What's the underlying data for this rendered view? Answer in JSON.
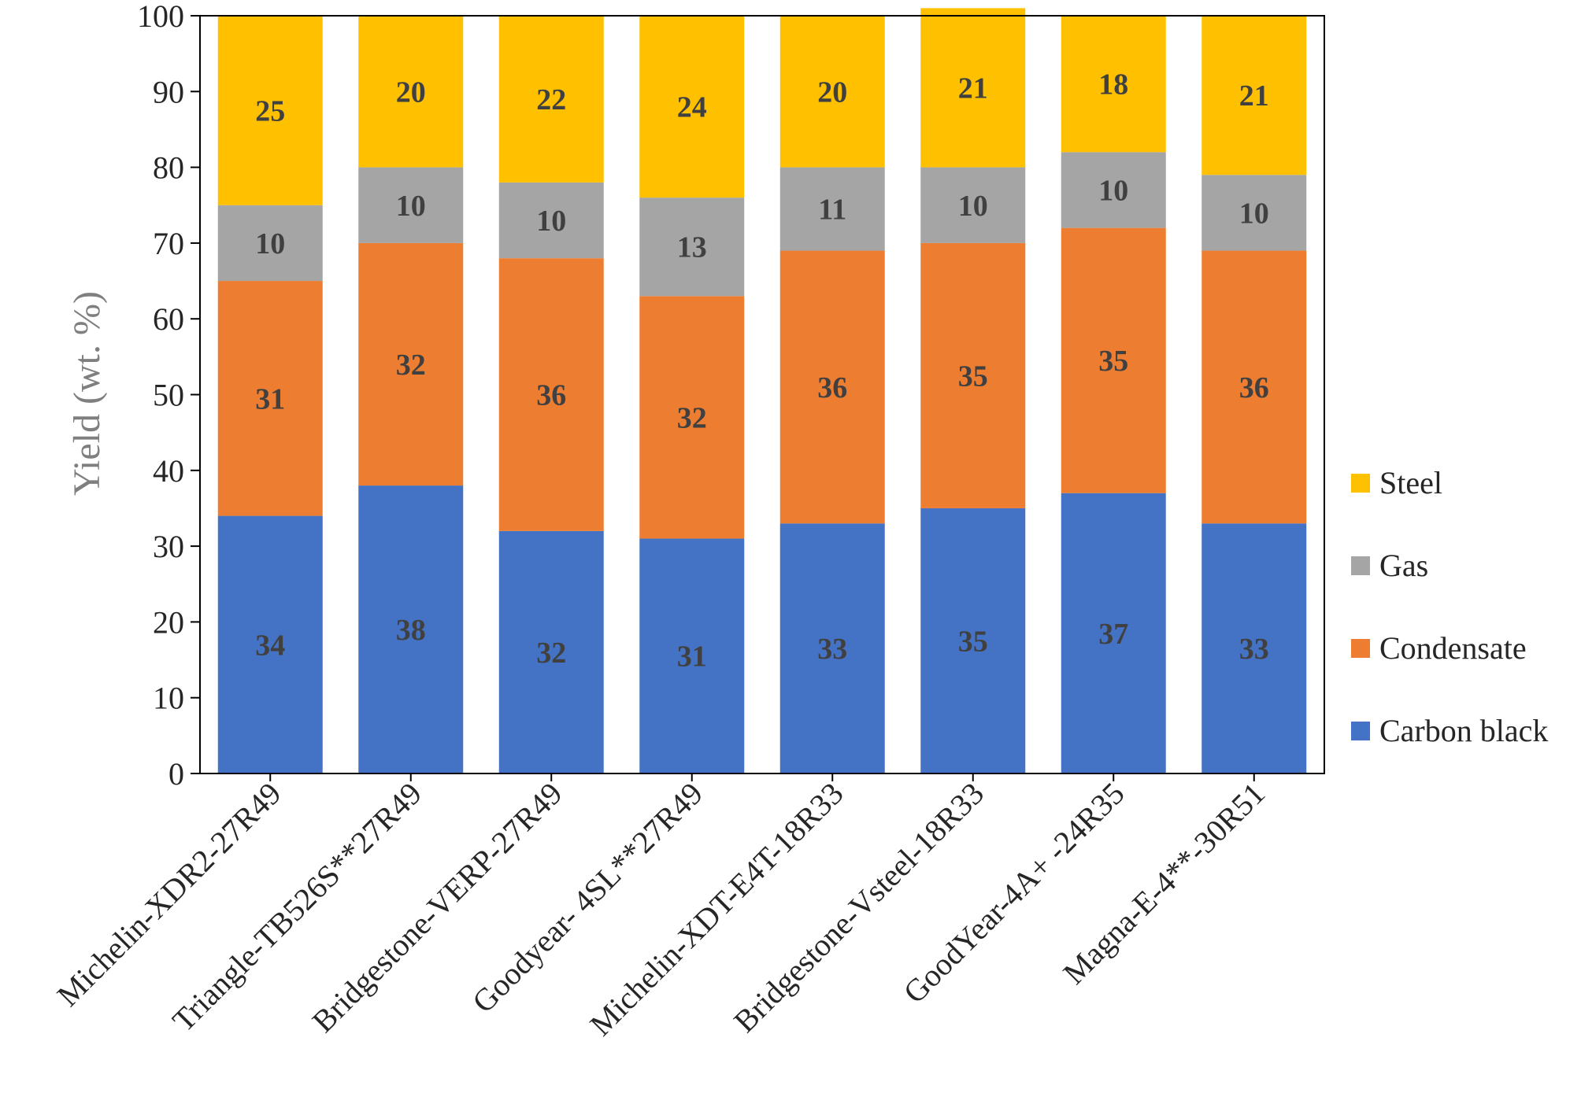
{
  "chart_data": {
    "type": "bar",
    "stacked": true,
    "title": "",
    "xlabel": "",
    "ylabel": "Yield (wt. %)",
    "ylim": [
      0,
      100
    ],
    "yticks": [
      "0",
      "10",
      "20",
      "30",
      "40",
      "50",
      "60",
      "70",
      "80",
      "90",
      "100"
    ],
    "grid": false,
    "legend_position": "right",
    "categories": [
      "Michelin-XDR2-27R49",
      "Triangle-TB526S**27R49",
      "Bridgestone-VERP-27R49",
      "Goodyear- 4SL**27R49",
      "Michelin-XDT-E4T-18R33",
      "Bridgestone-Vsteel-18R33",
      "GoodYear-4A+ -24R35",
      "Magna-E-4**-30R51"
    ],
    "series": [
      {
        "name": "Carbon black",
        "color": "#4472c4",
        "values": [
          34,
          38,
          32,
          31,
          33,
          35,
          37,
          33
        ]
      },
      {
        "name": "Condensate",
        "color": "#ed7d31",
        "values": [
          31,
          32,
          36,
          32,
          36,
          35,
          35,
          36
        ]
      },
      {
        "name": "Gas",
        "color": "#a5a5a5",
        "values": [
          10,
          10,
          10,
          13,
          11,
          10,
          10,
          10
        ]
      },
      {
        "name": "Steel",
        "color": "#ffc000",
        "values": [
          25,
          20,
          22,
          24,
          20,
          21,
          18,
          21
        ]
      }
    ],
    "legend_order": [
      "Steel",
      "Gas",
      "Condensate",
      "Carbon black"
    ]
  }
}
